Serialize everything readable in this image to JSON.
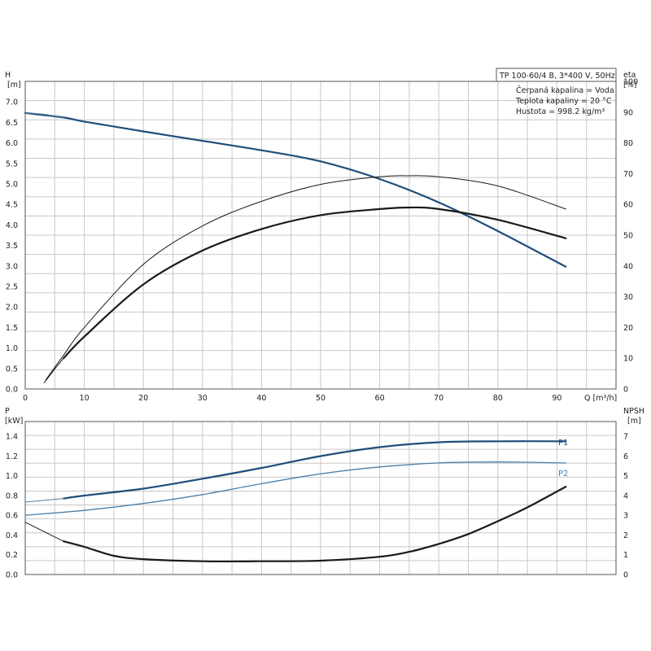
{
  "info": {
    "title": "TP 100-60/4 B, 3*400 V, 50Hz",
    "lines": [
      "Čerpaná kapalina = Voda",
      "Teplota kapaliny = 20 °C",
      "Hustota = 998.2 kg/m³"
    ]
  },
  "colors": {
    "blue": "#1f4e7a",
    "blue_light": "#4d7fa8",
    "black": "#1a1a1a",
    "grid": "#c8c8c8"
  },
  "chart_data": [
    {
      "type": "line",
      "xlabel": "Q [m³/h]",
      "ylabel": "H",
      "ylabel_unit": "[m]",
      "y2label": "eta",
      "y2label_unit": "[%]",
      "xlim": [
        0,
        100
      ],
      "ylim": [
        0,
        7.5
      ],
      "y2lim": [
        0,
        100
      ],
      "xticks": [
        0,
        10,
        20,
        30,
        40,
        50,
        60,
        70,
        80,
        90
      ],
      "yticks": [
        0.0,
        0.5,
        1.0,
        1.5,
        2.0,
        2.5,
        3.0,
        3.5,
        4.0,
        4.5,
        5.0,
        5.5,
        6.0,
        6.5,
        7.0
      ],
      "y2ticks": [
        0,
        10,
        20,
        30,
        40,
        50,
        60,
        70,
        80,
        90,
        100
      ],
      "grid": true,
      "series": [
        {
          "role": "head",
          "axis": "y",
          "color": "blue",
          "width": 2.2,
          "x": [
            0,
            6.5,
            10,
            20,
            30,
            40,
            50,
            60,
            70,
            80,
            91.5
          ],
          "y": [
            6.73,
            6.62,
            6.52,
            6.28,
            6.05,
            5.82,
            5.55,
            5.12,
            4.55,
            3.85,
            2.98
          ]
        },
        {
          "role": "head-extension",
          "axis": "y",
          "color": "blue_light",
          "width": 1,
          "x": [
            0,
            3,
            6.5
          ],
          "y": [
            6.73,
            6.7,
            6.62
          ]
        },
        {
          "role": "eta-total",
          "axis": "y2",
          "color": "black",
          "width": 2.2,
          "x": [
            6.5,
            10,
            20,
            30,
            40,
            50,
            60,
            65,
            70,
            80,
            91.5
          ],
          "y": [
            10,
            17,
            34,
            45,
            52,
            56.5,
            58.5,
            59,
            58.5,
            55,
            49
          ]
        },
        {
          "role": "eta-total-extension",
          "axis": "y2",
          "color": "black",
          "width": 1,
          "x": [
            3.2,
            5,
            6.5
          ],
          "y": [
            2,
            6.5,
            10
          ]
        },
        {
          "role": "eta-pump",
          "axis": "y2",
          "color": "black",
          "width": 1,
          "x": [
            3.5,
            6.5,
            10,
            20,
            30,
            40,
            50,
            60,
            65,
            70,
            80,
            91.5
          ],
          "y": [
            3,
            11,
            20,
            40.5,
            53,
            61,
            66.5,
            69,
            69.3,
            69,
            66,
            58.5
          ]
        }
      ]
    },
    {
      "type": "line",
      "ylabel": "P",
      "ylabel_unit": "[kW]",
      "y2label": "NPSH",
      "y2label_unit": "[m]",
      "xlim": [
        0,
        100
      ],
      "ylim": [
        0,
        1.55
      ],
      "y2lim": [
        0,
        7.75
      ],
      "yticks": [
        0.0,
        0.2,
        0.4,
        0.6,
        0.8,
        1.0,
        1.2,
        1.4
      ],
      "y2ticks": [
        0,
        1,
        2,
        3,
        4,
        5,
        6,
        7
      ],
      "grid": true,
      "series": [
        {
          "name": "P1",
          "axis": "y",
          "color": "blue",
          "width": 2.2,
          "x": [
            6.5,
            10,
            20,
            30,
            40,
            50,
            60,
            70,
            80,
            91.5
          ],
          "y": [
            0.77,
            0.8,
            0.87,
            0.97,
            1.08,
            1.2,
            1.29,
            1.34,
            1.35,
            1.35
          ]
        },
        {
          "name": "",
          "axis": "y",
          "color": "blue_light",
          "width": 1,
          "x": [
            0,
            3,
            6.5
          ],
          "y": [
            0.735,
            0.75,
            0.77
          ]
        },
        {
          "name": "P2",
          "axis": "y",
          "color": "blue_light",
          "width": 1.3,
          "x": [
            0,
            10,
            20,
            30,
            40,
            50,
            60,
            70,
            80,
            91.5
          ],
          "y": [
            0.6,
            0.65,
            0.72,
            0.81,
            0.92,
            1.02,
            1.09,
            1.13,
            1.14,
            1.13
          ]
        },
        {
          "name": "",
          "axis": "y2",
          "color": "black",
          "width": 2.2,
          "x": [
            6.5,
            10,
            15,
            20,
            30,
            40,
            50,
            60,
            65,
            70,
            75,
            80,
            85,
            91.5
          ],
          "y": [
            1.68,
            1.4,
            0.95,
            0.78,
            0.67,
            0.67,
            0.7,
            0.9,
            1.15,
            1.55,
            2.05,
            2.7,
            3.4,
            4.45
          ]
        },
        {
          "name": "",
          "axis": "y2",
          "color": "black",
          "width": 1,
          "x": [
            0,
            3,
            6.5
          ],
          "y": [
            2.65,
            2.2,
            1.68
          ]
        }
      ]
    }
  ]
}
